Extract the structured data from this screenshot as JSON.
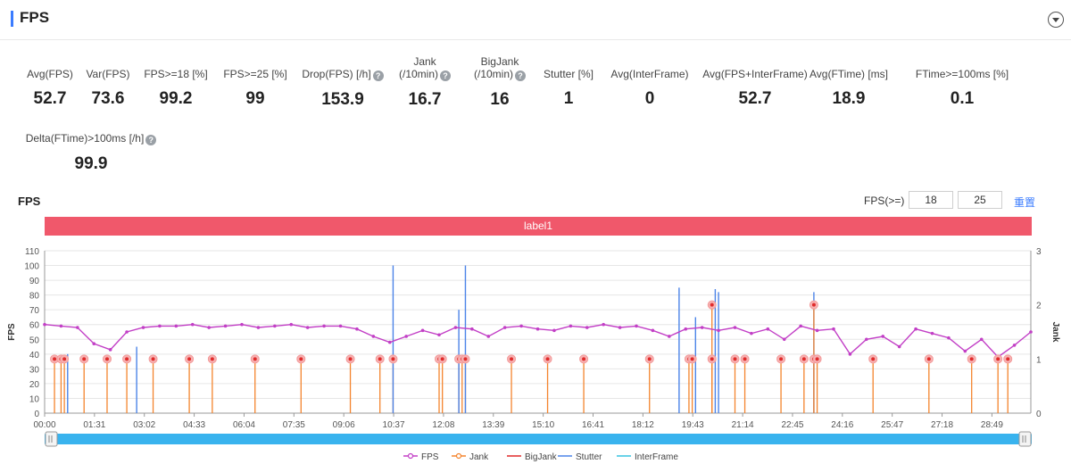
{
  "header": {
    "title": "FPS"
  },
  "metrics": [
    {
      "label": "Avg(FPS)",
      "value": "52.7"
    },
    {
      "label": "Var(FPS)",
      "value": "73.6"
    },
    {
      "label": "FPS>=18 [%]",
      "value": "99.2"
    },
    {
      "label": "FPS>=25 [%]",
      "value": "99"
    },
    {
      "label": "Drop(FPS) [/h]",
      "value": "153.9"
    },
    {
      "label": "Jank",
      "label2": "(/10min)",
      "value": "16.7"
    },
    {
      "label": "BigJank",
      "label2": "(/10min)",
      "value": "16"
    },
    {
      "label": "Stutter [%]",
      "value": "1"
    },
    {
      "label": "Avg(InterFrame)",
      "value": "0"
    },
    {
      "label": "Avg(FPS+InterFrame)",
      "value": "52.7"
    },
    {
      "label": "Avg(FTime) [ms]",
      "value": "18.9"
    },
    {
      "label": "FTime>=100ms [%]",
      "value": "0.1"
    },
    {
      "label": "Delta(FTime)>100ms [/h]",
      "value": "99.9"
    }
  ],
  "help_glyph": "?",
  "chart_section": {
    "title": "FPS",
    "threshold_label": "FPS(>=)",
    "threshold_1": "18",
    "threshold_2": "25",
    "reset_label": "重置",
    "band_label": "label1"
  },
  "colors": {
    "fps": "#c23fc6",
    "jank": "#f4842d",
    "bigjank": "#e02b2b",
    "stutter": "#4c84e8",
    "interframe": "#39c2e0",
    "band": "#f0586b",
    "slider": "#39b3ee"
  },
  "chart_data": {
    "type": "line",
    "y_left": {
      "label": "FPS",
      "range": [
        0,
        110
      ],
      "ticks": [
        "0",
        "10",
        "20",
        "30",
        "40",
        "50",
        "60",
        "70",
        "80",
        "90",
        "100",
        "110"
      ]
    },
    "y_right": {
      "label": "Jank",
      "range": [
        0,
        3
      ],
      "ticks": [
        "0",
        "1",
        "2",
        "3"
      ]
    },
    "x_range_min": [
      0,
      30
    ],
    "x_ticks": [
      "00:00",
      "01:31",
      "03:02",
      "04:33",
      "06:04",
      "07:35",
      "09:06",
      "10:37",
      "12:08",
      "13:39",
      "15:10",
      "16:41",
      "18:12",
      "19:43",
      "21:14",
      "22:45",
      "24:16",
      "25:47",
      "27:18",
      "28:49"
    ],
    "legend": [
      "FPS",
      "Jank",
      "BigJank",
      "Stutter",
      "InterFrame"
    ],
    "legend_position": "bottom-center",
    "grid": true,
    "series": [
      {
        "name": "FPS",
        "x": [
          0,
          0.5,
          1,
          1.5,
          2,
          2.5,
          3,
          3.5,
          4,
          4.5,
          5,
          5.5,
          6,
          6.5,
          7,
          7.5,
          8,
          8.5,
          9,
          9.5,
          10,
          10.5,
          11,
          11.5,
          12,
          12.5,
          13,
          13.5,
          14,
          14.5,
          15,
          15.5,
          16,
          16.5,
          17,
          17.5,
          18,
          18.5,
          19,
          19.5,
          20,
          20.5,
          21,
          21.5,
          22,
          22.5,
          23,
          23.5,
          24,
          24.5,
          25,
          25.5,
          26,
          26.5,
          27,
          27.5,
          28,
          28.5,
          29,
          29.5,
          30
        ],
        "values": [
          60,
          59,
          58,
          47,
          43,
          55,
          58,
          59,
          59,
          60,
          58,
          59,
          60,
          58,
          59,
          60,
          58,
          59,
          59,
          57,
          52,
          48,
          52,
          56,
          53,
          58,
          57,
          52,
          58,
          59,
          57,
          56,
          59,
          58,
          60,
          58,
          59,
          56,
          52,
          57,
          58,
          56,
          58,
          54,
          57,
          50,
          59,
          56,
          57,
          40,
          50,
          52,
          45,
          57,
          54,
          51,
          42,
          50,
          38,
          46,
          55
        ]
      },
      {
        "name": "Jank",
        "x": [
          0.3,
          0.5,
          0.6,
          1.2,
          1.9,
          2.5,
          3.3,
          4.4,
          5.1,
          6.4,
          7.8,
          9.3,
          10.2,
          10.6,
          12.0,
          12.1,
          12.6,
          12.7,
          12.8,
          14.2,
          15.3,
          16.4,
          18.4,
          19.6,
          19.7,
          20.3,
          21.0,
          21.3,
          22.4,
          23.1,
          23.4,
          23.5,
          25.2,
          26.9,
          28.2,
          29.0,
          29.3
        ],
        "values": [
          1,
          1,
          1,
          1,
          1,
          1,
          1,
          1,
          1,
          1,
          1,
          1,
          1,
          1,
          1,
          1,
          1,
          1,
          1,
          1,
          1,
          1,
          1,
          1,
          1,
          1,
          1,
          1,
          1,
          1,
          1,
          1,
          1,
          1,
          1,
          1,
          1
        ]
      },
      {
        "name": "BigJank",
        "x": [
          20.3,
          23.4
        ],
        "values": [
          2,
          2
        ]
      },
      {
        "name": "Stutter",
        "x": [
          0.7,
          2.8,
          10.6,
          12.6,
          12.8,
          19.3,
          19.8,
          20.4,
          20.5,
          23.4
        ],
        "values": [
          40,
          45,
          100,
          70,
          100,
          85,
          65,
          84,
          82,
          82
        ]
      },
      {
        "name": "InterFrame",
        "x": [],
        "values": []
      }
    ]
  }
}
